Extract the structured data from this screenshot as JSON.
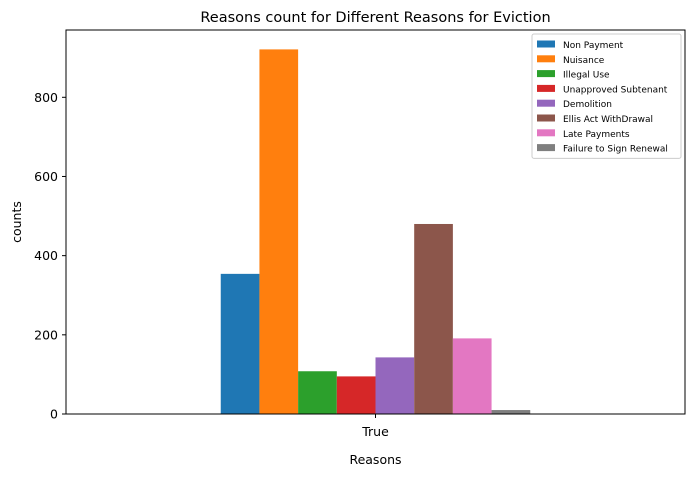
{
  "chart_data": {
    "type": "bar",
    "title": "Reasons count for Different Reasons for Eviction",
    "xlabel": "Reasons",
    "ylabel": "counts",
    "categories": [
      "True"
    ],
    "ylim": [
      0,
      970
    ],
    "yticks": [
      0,
      200,
      400,
      600,
      800
    ],
    "grid": false,
    "legend_position": "top-right",
    "series": [
      {
        "name": "Non Payment",
        "values": [
          354
        ],
        "color": "#1f77b4"
      },
      {
        "name": "Nuisance",
        "values": [
          921
        ],
        "color": "#ff7f0e"
      },
      {
        "name": "Illegal Use",
        "values": [
          108
        ],
        "color": "#2ca02c"
      },
      {
        "name": "Unapproved Subtenant",
        "values": [
          95
        ],
        "color": "#d62728"
      },
      {
        "name": "Demolition",
        "values": [
          143
        ],
        "color": "#9467bd"
      },
      {
        "name": "Ellis Act WithDrawal",
        "values": [
          480
        ],
        "color": "#8c564b"
      },
      {
        "name": "Late Payments",
        "values": [
          191
        ],
        "color": "#e377c2"
      },
      {
        "name": "Failure to Sign Renewal",
        "values": [
          10
        ],
        "color": "#7f7f7f"
      }
    ]
  }
}
